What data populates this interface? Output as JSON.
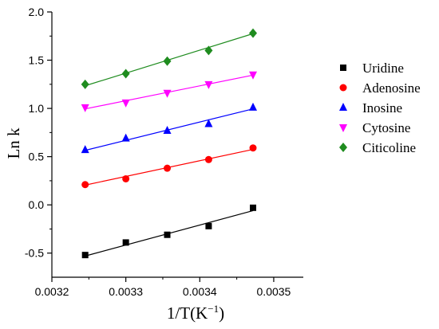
{
  "chart_data": {
    "type": "scatter",
    "xlabel": "1/T(K",
    "xlabel_sup": "−1",
    "xlabel_close": ")",
    "ylabel": "Ln k",
    "xlim": [
      0.0032,
      0.00354
    ],
    "ylim": [
      -0.75,
      2.0
    ],
    "x_ticks": [
      0.0032,
      0.0033,
      0.0034,
      0.0035
    ],
    "x_tick_labels": [
      "0.0032",
      "0.0033",
      "0.0034",
      "0.0035"
    ],
    "y_ticks": [
      -0.5,
      0.0,
      0.5,
      1.0,
      1.5,
      2.0
    ],
    "y_tick_labels": [
      "-0.5",
      "0.0",
      "0.5",
      "1.0",
      "1.5",
      "2.0"
    ],
    "grid": false,
    "legend_position": "right",
    "x": [
      0.003245,
      0.0033,
      0.003356,
      0.003412,
      0.003472
    ],
    "series": [
      {
        "name": "Uridine",
        "marker": "square",
        "color": "#000000",
        "values": [
          -0.52,
          -0.39,
          -0.31,
          -0.22,
          -0.03
        ],
        "fit": [
          [
            0.003245,
            -0.53
          ],
          [
            0.003472,
            -0.06
          ]
        ]
      },
      {
        "name": "Adenosine",
        "marker": "circle",
        "color": "#ff0000",
        "values": [
          0.21,
          0.27,
          0.38,
          0.47,
          0.59
        ],
        "fit": [
          [
            0.003245,
            0.205
          ],
          [
            0.003472,
            0.575
          ]
        ]
      },
      {
        "name": "Inosine",
        "marker": "triangle-up",
        "color": "#0000ff",
        "values": [
          0.57,
          0.69,
          0.77,
          0.84,
          1.01
        ],
        "fit": [
          [
            0.003245,
            0.565
          ],
          [
            0.003472,
            0.995
          ]
        ]
      },
      {
        "name": "Cytosine",
        "marker": "triangle-down",
        "color": "#ff00ff",
        "values": [
          1.01,
          1.06,
          1.16,
          1.25,
          1.35
        ],
        "fit": [
          [
            0.003245,
            0.995
          ],
          [
            0.003472,
            1.345
          ]
        ]
      },
      {
        "name": "Citicoline",
        "marker": "diamond",
        "color": "#1f8c1f",
        "values": [
          1.25,
          1.36,
          1.49,
          1.6,
          1.78
        ],
        "fit": [
          [
            0.003245,
            1.235
          ],
          [
            0.003472,
            1.775
          ]
        ]
      }
    ]
  }
}
